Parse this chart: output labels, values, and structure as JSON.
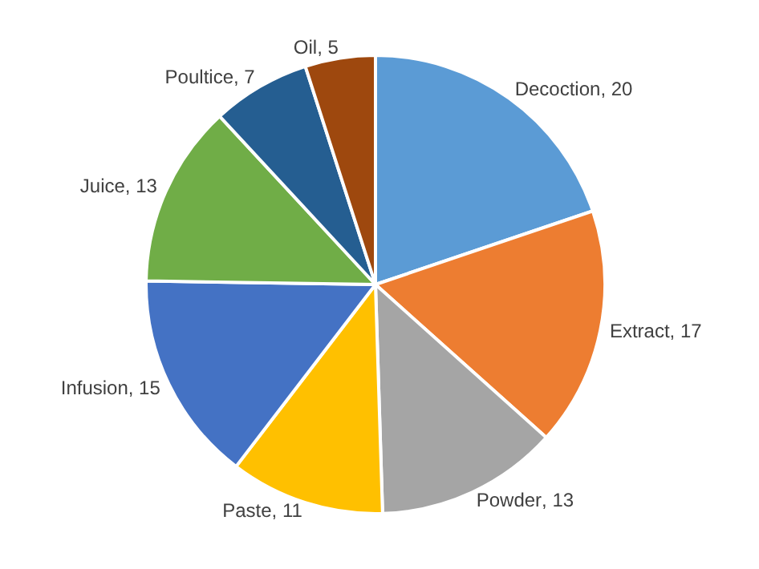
{
  "chart_data": {
    "type": "pie",
    "categories": [
      "Decoction",
      "Extract",
      "Powder",
      "Paste",
      "Infusion",
      "Juice",
      "Poultice",
      "Oil"
    ],
    "values": [
      20,
      17,
      13,
      11,
      15,
      13,
      7,
      5
    ],
    "colors": [
      "#5b9bd5",
      "#ed7d31",
      "#a5a5a5",
      "#ffc000",
      "#4472c4",
      "#70ad47",
      "#255e91",
      "#9e480e"
    ],
    "value_labels": [
      ", 20",
      ", 17",
      ", 13",
      ", 11",
      ", 15",
      ", 13",
      ", 7",
      ", 5"
    ],
    "legend": false
  }
}
